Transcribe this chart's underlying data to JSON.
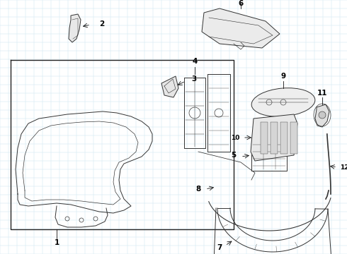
{
  "background_color": "#ffffff",
  "grid_color": "#cde4f0",
  "border_color": "#222222",
  "line_color": "#333333",
  "lw": 0.7,
  "fig_width": 4.9,
  "fig_height": 3.6,
  "dpi": 100
}
